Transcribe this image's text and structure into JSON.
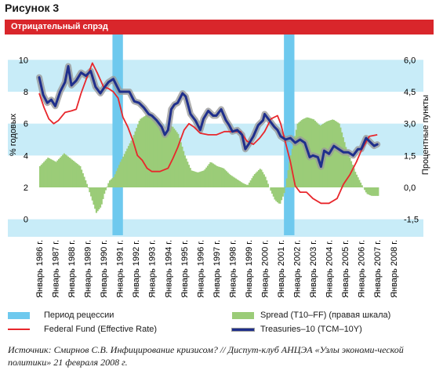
{
  "figure_label": "Рисунок 3",
  "banner": "Отрицательный спрэд",
  "source_note": "Источник: Смирнов С.В. Инфицирование кризисом? // Диспут-клуб АНЦЭА «Узлы экономи-ческой политики» 21 февраля 2008 г.",
  "colors": {
    "banner": "#d9262b",
    "recession": "#6ec9ee",
    "band": "#c8ecf8",
    "spread": "#9bcc78",
    "fedfund": "#e8272c",
    "treasury": "#1f2f8c",
    "treasury_shadow": "#9a9a9a"
  },
  "legend": {
    "recession": "Период рецессии",
    "spread": "Spread (T10–FF) (правая шкала)",
    "fedfund": "Federal Fund (Effective Rate)",
    "treasury": "Treasuries–10 (TCM–10Y)"
  },
  "chart_data": {
    "type": "line",
    "ylabel_left": "% годовых",
    "ylabel_right": "Процентные пункты",
    "y_left_ticks": [
      "10",
      "8",
      "6",
      "4",
      "2",
      "0"
    ],
    "y_right_ticks": [
      "6,0",
      "4,5",
      "3,0",
      "1,5",
      "0,0",
      "-1,5"
    ],
    "ylim_left": [
      -1,
      11
    ],
    "ylim_right": [
      -2.25,
      6.75
    ],
    "x_ticks": [
      "Январь 1986 г.",
      "Январь 1987 г.",
      "Январь 1988 г.",
      "Январь 1989 г.",
      "Январь 1990 г.",
      "Январь 1991 г.",
      "Январь 1992 г.",
      "Январь 1993 г.",
      "Январь 1994 г.",
      "Январь 1995 г.",
      "Январь 1996 г.",
      "Январь 1997 г.",
      "Январь 1998 г.",
      "Январь 1999 г.",
      "Январь 2000 г.",
      "Январь 2001 г.",
      "Январь 2002 г.",
      "Январь 2003 г.",
      "Январь 2004 г.",
      "Январь 2005 г.",
      "Январь 2006 г.",
      "Январь 2007 г.",
      "Январь 2008 г."
    ],
    "xlim": [
      1986.0,
      2008.4
    ],
    "recessions": [
      [
        1990.55,
        1991.2
      ],
      [
        2001.2,
        2001.85
      ]
    ],
    "series": [
      {
        "name": "Treasuries–10 (TCM–10Y)",
        "axis": "left",
        "x": [
          1986.0,
          1986.25,
          1986.5,
          1986.75,
          1987.0,
          1987.3,
          1987.6,
          1987.8,
          1988.0,
          1988.3,
          1988.6,
          1988.9,
          1989.2,
          1989.5,
          1989.8,
          1990.0,
          1990.3,
          1990.6,
          1990.8,
          1991.0,
          1991.3,
          1991.6,
          1991.9,
          1992.2,
          1992.5,
          1992.8,
          1993.0,
          1993.3,
          1993.6,
          1993.8,
          1994.0,
          1994.2,
          1994.4,
          1994.6,
          1994.9,
          1995.1,
          1995.4,
          1995.7,
          1996.0,
          1996.2,
          1996.5,
          1996.8,
          1997.0,
          1997.3,
          1997.6,
          1997.8,
          1998.0,
          1998.3,
          1998.6,
          1998.8,
          1999.0,
          1999.3,
          1999.6,
          1999.9,
          2000.0,
          2000.3,
          2000.6,
          2000.8,
          2001.0,
          2001.3,
          2001.6,
          2001.9,
          2002.2,
          2002.5,
          2002.8,
          2003.0,
          2003.3,
          2003.5,
          2003.7,
          2004.0,
          2004.3,
          2004.6,
          2004.9,
          2005.2,
          2005.5,
          2005.8,
          2006.0,
          2006.3,
          2006.6,
          2006.8,
          2007.0
        ],
        "values": [
          8.9,
          7.8,
          7.3,
          7.5,
          7.1,
          8.0,
          8.6,
          9.6,
          8.4,
          8.7,
          9.2,
          9.0,
          9.3,
          8.3,
          7.9,
          8.2,
          8.6,
          8.8,
          8.4,
          8.0,
          8.0,
          8.0,
          7.4,
          7.3,
          7.0,
          6.6,
          6.5,
          6.2,
          5.8,
          5.3,
          5.6,
          6.9,
          7.2,
          7.3,
          7.9,
          7.7,
          6.6,
          6.2,
          5.6,
          6.3,
          6.8,
          6.5,
          6.5,
          6.9,
          6.2,
          5.9,
          5.5,
          5.6,
          5.3,
          4.4,
          4.7,
          5.2,
          5.9,
          6.2,
          6.6,
          6.2,
          5.8,
          5.6,
          5.2,
          5.0,
          5.1,
          4.8,
          5.0,
          4.8,
          3.9,
          4.0,
          3.9,
          3.3,
          4.3,
          4.1,
          4.6,
          4.4,
          4.2,
          4.2,
          4.0,
          4.4,
          4.4,
          5.1,
          4.8,
          4.6,
          4.7
        ]
      },
      {
        "name": "Federal Fund (Effective Rate)",
        "axis": "left",
        "x": [
          1986.0,
          1986.3,
          1986.6,
          1986.9,
          1987.2,
          1987.6,
          1988.0,
          1988.3,
          1988.6,
          1989.0,
          1989.3,
          1989.6,
          1990.0,
          1990.3,
          1990.6,
          1990.9,
          1991.2,
          1991.5,
          1991.8,
          1992.1,
          1992.4,
          1992.7,
          1993.0,
          1993.5,
          1994.0,
          1994.3,
          1994.6,
          1995.0,
          1995.3,
          1995.6,
          1996.0,
          1996.5,
          1997.0,
          1997.5,
          1998.0,
          1998.5,
          1998.9,
          1999.3,
          1999.7,
          2000.0,
          2000.4,
          2000.8,
          2001.0,
          2001.3,
          2001.6,
          2001.9,
          2002.2,
          2002.6,
          2003.0,
          2003.5,
          2004.0,
          2004.5,
          2004.9,
          2005.3,
          2005.7,
          2006.0,
          2006.5,
          2007.0
        ],
        "values": [
          7.9,
          7.0,
          6.3,
          6.0,
          6.2,
          6.7,
          6.8,
          6.9,
          7.9,
          9.0,
          9.8,
          9.2,
          8.3,
          8.2,
          8.0,
          7.6,
          6.4,
          5.8,
          5.0,
          4.0,
          3.7,
          3.2,
          3.0,
          3.0,
          3.2,
          3.8,
          4.5,
          5.6,
          6.0,
          5.8,
          5.4,
          5.3,
          5.3,
          5.5,
          5.5,
          5.5,
          4.9,
          4.7,
          5.1,
          5.5,
          6.3,
          6.5,
          6.0,
          4.8,
          3.6,
          2.1,
          1.7,
          1.7,
          1.3,
          1.0,
          1.0,
          1.3,
          2.2,
          2.8,
          3.6,
          4.3,
          5.2,
          5.3
        ]
      },
      {
        "name": "Spread (T10–FF) (правая шкала)",
        "axis": "right",
        "x": [
          1986.0,
          1986.5,
          1987.0,
          1987.5,
          1988.0,
          1988.5,
          1988.9,
          1989.2,
          1989.5,
          1989.8,
          1990.0,
          1990.3,
          1990.6,
          1991.0,
          1991.4,
          1991.8,
          1992.2,
          1992.6,
          1993.0,
          1993.4,
          1993.8,
          1994.2,
          1994.6,
          1995.0,
          1995.4,
          1995.8,
          1996.2,
          1996.6,
          1997.0,
          1997.4,
          1997.8,
          1998.2,
          1998.6,
          1998.9,
          1999.3,
          1999.7,
          2000.0,
          2000.3,
          2000.6,
          2000.9,
          2001.2,
          2001.5,
          2001.8,
          2002.0,
          2002.3,
          2002.6,
          2003.0,
          2003.4,
          2003.8,
          2004.2,
          2004.6,
          2005.0,
          2005.3,
          2005.6,
          2006.0,
          2006.3,
          2006.6,
          2007.0
        ],
        "values": [
          1.0,
          1.4,
          1.2,
          1.6,
          1.3,
          1.0,
          0.2,
          -0.5,
          -1.2,
          -0.9,
          -0.3,
          0.3,
          0.5,
          1.2,
          1.8,
          2.4,
          3.2,
          3.4,
          3.4,
          3.0,
          2.5,
          2.9,
          2.5,
          1.5,
          0.8,
          0.7,
          0.8,
          1.2,
          1.0,
          0.9,
          0.6,
          0.4,
          0.2,
          0.1,
          0.6,
          0.9,
          0.5,
          -0.1,
          -0.6,
          -0.8,
          -0.2,
          1.2,
          2.3,
          3.0,
          3.2,
          3.3,
          3.2,
          2.9,
          3.1,
          3.2,
          3.0,
          1.9,
          1.3,
          0.7,
          0.1,
          -0.3,
          -0.4,
          -0.4
        ]
      }
    ]
  }
}
